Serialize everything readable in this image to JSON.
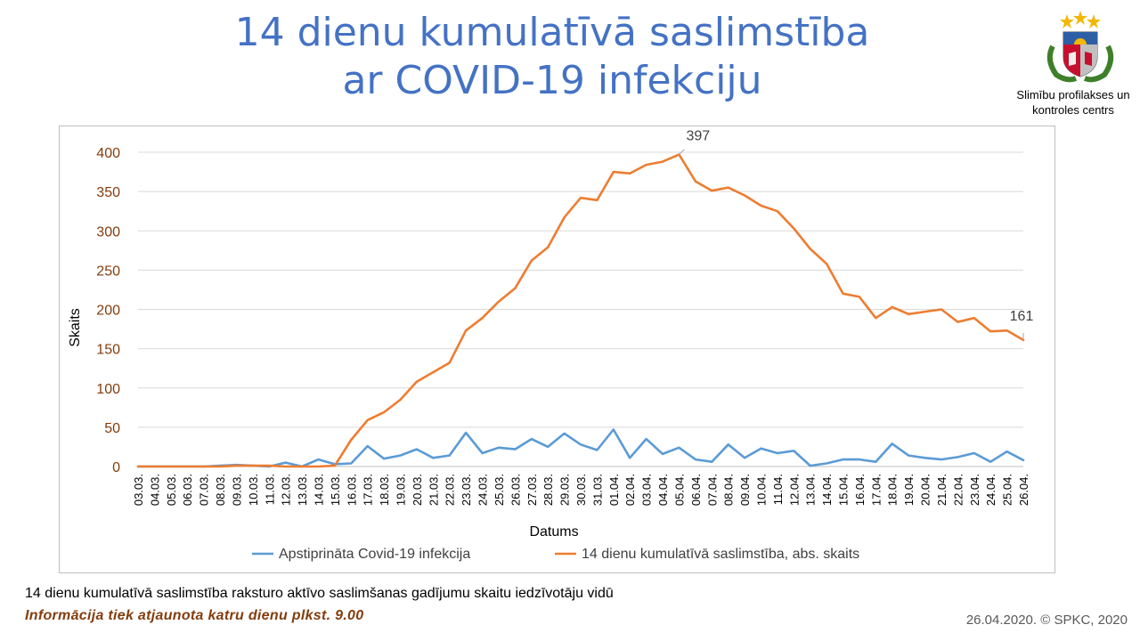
{
  "header": {
    "title_line1": "14 dienu kumulatīvā saslimstība",
    "title_line2": "ar COVID-19 infekciju"
  },
  "org": {
    "name_line1": "Slimību profilakses un",
    "name_line2": "kontroles centrs"
  },
  "footer": {
    "description": "14 dienu kumulatīvā saslimstība raksturo aktīvo saslimšanas gadījumu skaitu iedzīvotāju vidū",
    "update_note": "Informācija tiek atjaunota katru dienu plkst. 9.00",
    "copyright": "26.04.2020. © SPKC, 2020"
  },
  "colors": {
    "title": "#4472C4",
    "series_blue": "#5B9BD5",
    "series_orange": "#ED7D31",
    "axis_tick_y": "#843C0C"
  },
  "chart_data": {
    "type": "line",
    "xlabel": "Datums",
    "ylabel": "Skaits",
    "ylim": [
      0,
      400
    ],
    "yticks": [
      0,
      50,
      100,
      150,
      200,
      250,
      300,
      350,
      400
    ],
    "grid": true,
    "legend_position": "bottom",
    "categories": [
      "03.03.",
      "04.03.",
      "05.03.",
      "06.03.",
      "07.03.",
      "08.03.",
      "09.03.",
      "10.03.",
      "11.03.",
      "12.03.",
      "13.03.",
      "14.03.",
      "15.03.",
      "16.03.",
      "17.03.",
      "18.03.",
      "19.03.",
      "20.03.",
      "21.03.",
      "22.03.",
      "23.03.",
      "24.03.",
      "25.03.",
      "26.03.",
      "27.03.",
      "28.03.",
      "29.03.",
      "30.03.",
      "31.03.",
      "01.04.",
      "02.04.",
      "03.04.",
      "04.04.",
      "05.04.",
      "06.04.",
      "07.04.",
      "08.04.",
      "09.04.",
      "10.04.",
      "11.04.",
      "12.04.",
      "13.04.",
      "14.04.",
      "15.04.",
      "16.04.",
      "17.04.",
      "18.04.",
      "19.04.",
      "20.04.",
      "21.04.",
      "22.04.",
      "23.04.",
      "24.04.",
      "25.04.",
      "26.04."
    ],
    "series": [
      {
        "name": "Apstiprināta Covid-19 infekcija",
        "color": "#5B9BD5",
        "values": [
          0,
          0,
          0,
          0,
          0,
          1,
          2,
          1,
          0,
          5,
          0,
          9,
          3,
          4,
          26,
          10,
          14,
          22,
          11,
          14,
          43,
          17,
          24,
          22,
          35,
          25,
          42,
          28,
          21,
          47,
          11,
          35,
          16,
          24,
          9,
          6,
          28,
          11,
          23,
          17,
          20,
          1,
          4,
          9,
          9,
          6,
          29,
          14,
          11,
          9,
          12,
          17,
          6,
          19,
          8
        ]
      },
      {
        "name": "14 dienu kumulatīvā saslimstība, abs. skaits",
        "color": "#ED7D31",
        "values": [
          0,
          0,
          0,
          0,
          0,
          0,
          1,
          1,
          1,
          0,
          0,
          0,
          1,
          34,
          59,
          69,
          85,
          108,
          120,
          132,
          173,
          189,
          210,
          227,
          262,
          279,
          317,
          342,
          339,
          375,
          373,
          384,
          388,
          397,
          363,
          351,
          355,
          345,
          332,
          325,
          303,
          277,
          258,
          220,
          216,
          189,
          203,
          194,
          197,
          200,
          184,
          189,
          172,
          173,
          161
        ],
        "annotations": [
          {
            "index": 33,
            "label": "397"
          },
          {
            "index": 54,
            "label": "161"
          }
        ]
      }
    ]
  }
}
